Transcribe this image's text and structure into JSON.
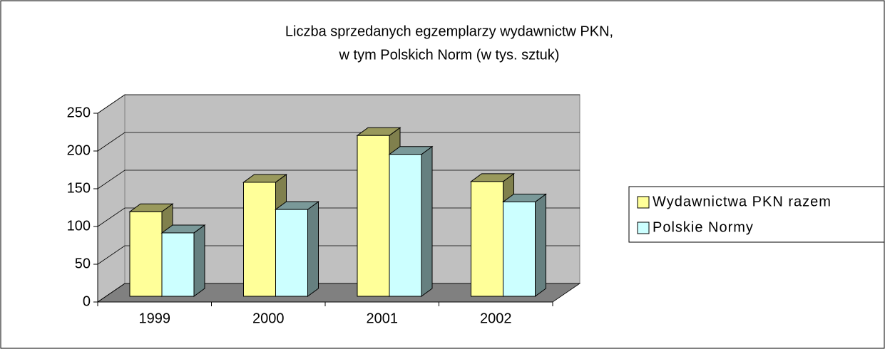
{
  "chart_data": {
    "type": "bar3d",
    "title": [
      "Liczba sprzedanych egzemplarzy wydawnictw PKN,",
      "w tym Polskich Norm (w tys. sztuk)"
    ],
    "categories": [
      "1999",
      "2000",
      "2001",
      "2002"
    ],
    "series": [
      {
        "name": "Wydawnictwa PKN razem",
        "color": "#ffff99",
        "values": [
          112,
          151,
          213,
          152
        ]
      },
      {
        "name": "Polskie Normy",
        "color": "#ccffff",
        "values": [
          84,
          115,
          188,
          125
        ]
      }
    ],
    "ylim": [
      0,
      250
    ],
    "yticks": [
      0,
      50,
      100,
      150,
      200,
      250
    ],
    "grid": true,
    "legend": "right"
  }
}
